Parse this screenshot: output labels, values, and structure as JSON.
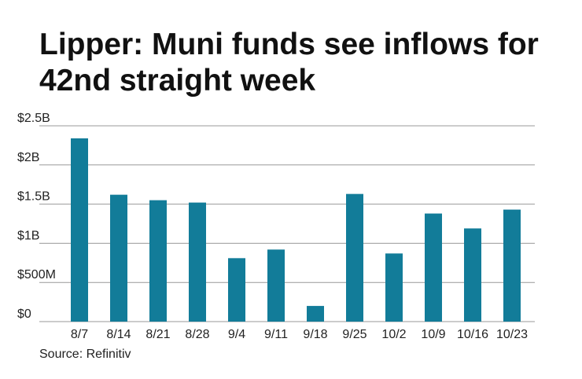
{
  "chart_data": {
    "type": "bar",
    "title": "Lipper: Muni funds see inflows for 42nd straight week",
    "source": "Source: Refinitiv",
    "categories": [
      "8/7",
      "8/14",
      "8/21",
      "8/28",
      "9/4",
      "9/11",
      "9/18",
      "9/25",
      "10/2",
      "10/9",
      "10/16",
      "10/23"
    ],
    "values": [
      2.34,
      1.62,
      1.55,
      1.52,
      0.81,
      0.92,
      0.2,
      1.63,
      0.87,
      1.38,
      1.19,
      1.43
    ],
    "color": "#127c99",
    "ylim": [
      0,
      2.5
    ],
    "yticks": [
      {
        "value": 0,
        "label": "$0"
      },
      {
        "value": 0.5,
        "label": "$500M"
      },
      {
        "value": 1,
        "label": "$1B"
      },
      {
        "value": 1.5,
        "label": "$1.5B"
      },
      {
        "value": 2,
        "label": "$2B"
      },
      {
        "value": 2.5,
        "label": "$2.5B"
      }
    ],
    "grid": true
  }
}
